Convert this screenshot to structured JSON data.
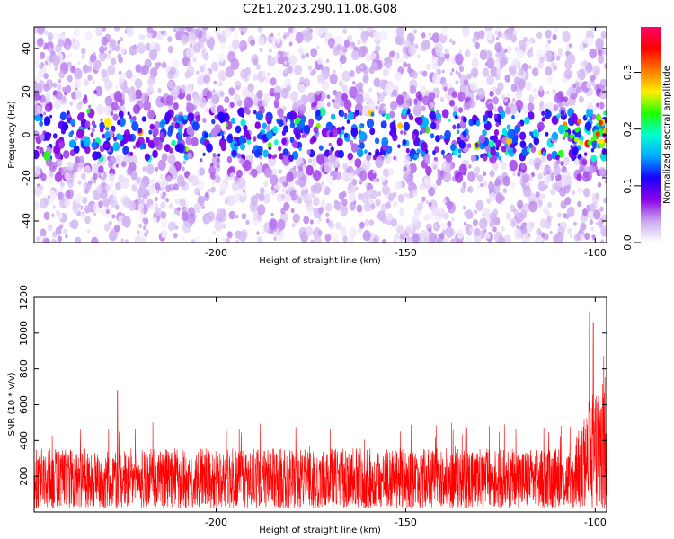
{
  "title": "C2E1.2023.290.11.08.G08",
  "chart_data": [
    {
      "type": "heatmap",
      "xlabel": "Height of straight line (km)",
      "ylabel": "Frequency (Hz)",
      "xlim": [
        -248,
        -97
      ],
      "ylim": [
        -50,
        50
      ],
      "x_ticks": [
        -200,
        -150,
        -100
      ],
      "x_tick_labels": [
        "-200",
        "-150",
        "-100"
      ],
      "y_ticks": [
        -40,
        -20,
        0,
        20,
        40
      ],
      "y_tick_labels": [
        "-40",
        "-20",
        "0",
        "20",
        "40"
      ],
      "colorbar": {
        "label": "Normalized spectral amplitude",
        "range": [
          0.0,
          0.38
        ],
        "ticks": [
          0.0,
          0.1,
          0.2,
          0.3
        ],
        "tick_labels": [
          "0.0",
          "0.1",
          "0.2",
          "0.3"
        ],
        "colors": [
          "#ffffff",
          "#c9a8f0",
          "#8a00e6",
          "#1a00ff",
          "#00aaff",
          "#00ffd0",
          "#22ff00",
          "#ffee00",
          "#ff7700",
          "#ff0000",
          "#ff0066"
        ]
      },
      "band": {
        "center_hz": 0,
        "half_width_hz": 10,
        "peak_value_near_edge": 0.35
      }
    },
    {
      "type": "line",
      "xlabel": "Height of straight line (km)",
      "ylabel": "SNR (10 * v/v)",
      "xlim": [
        -248,
        -97
      ],
      "ylim": [
        0,
        1200
      ],
      "x_ticks": [
        -200,
        -150,
        -100
      ],
      "x_tick_labels": [
        "-200",
        "-150",
        "-100"
      ],
      "y_ticks": [
        200,
        400,
        600,
        800,
        1000,
        1200
      ],
      "y_tick_labels": [
        "200",
        "400",
        "600",
        "800",
        "1000",
        "1200"
      ],
      "color": "#ff0000",
      "baseline_snr": 180,
      "typical_peak_snr": 450,
      "max_peak": {
        "x": -101.5,
        "y": 1120
      },
      "notable_peaks": [
        {
          "x": -226,
          "y": 680
        },
        {
          "x": -101.5,
          "y": 1120
        },
        {
          "x": -100.5,
          "y": 1060
        }
      ]
    }
  ]
}
